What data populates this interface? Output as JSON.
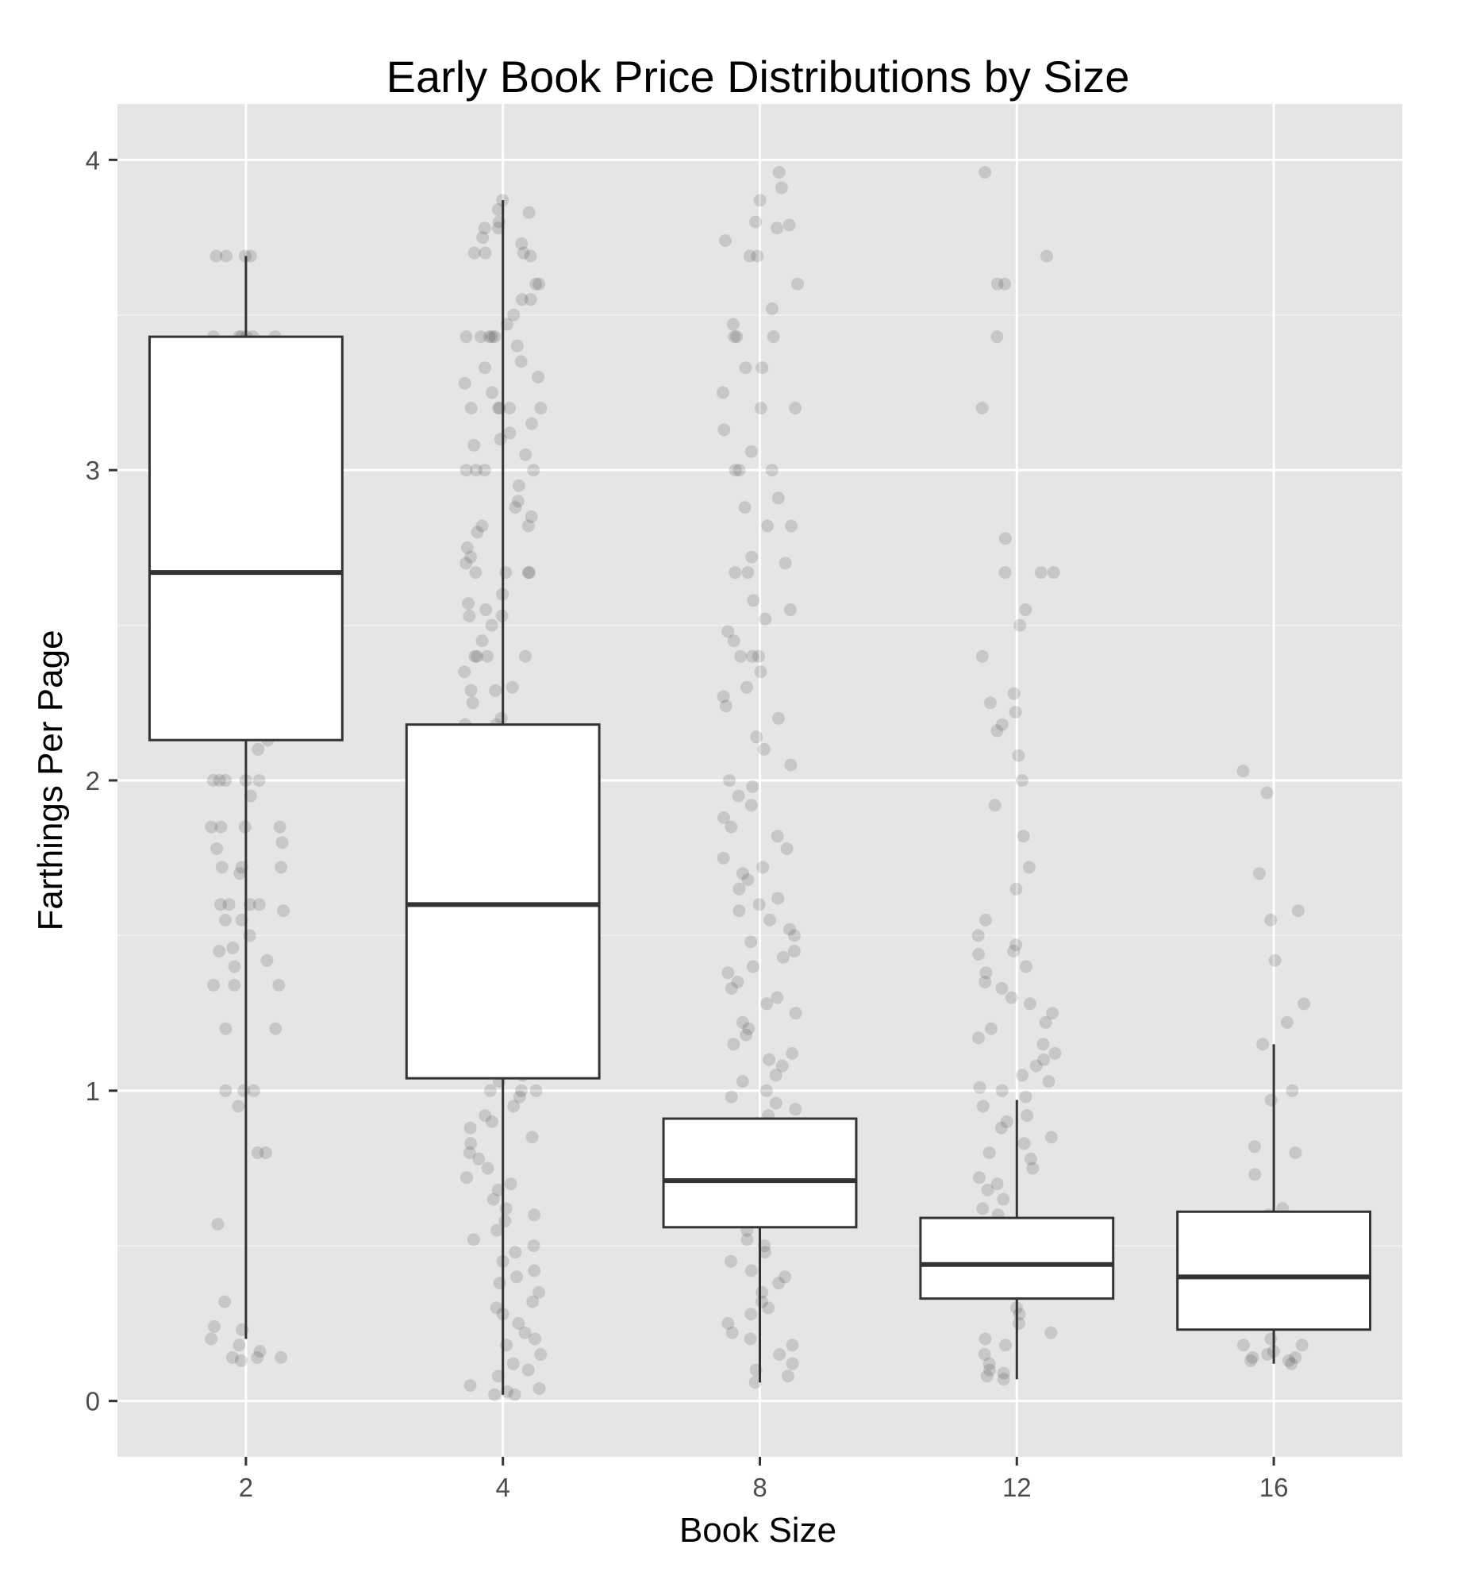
{
  "chart_data": {
    "type": "boxplot",
    "title": "Early Book Price Distributions by Size",
    "xlabel": "Book Size",
    "ylabel": "Farthings Per Page",
    "ylim": [
      -0.18,
      4.18
    ],
    "yticks": [
      0,
      1,
      2,
      3,
      4
    ],
    "grid": true,
    "categories": [
      "2",
      "4",
      "8",
      "12",
      "16"
    ],
    "boxes": [
      {
        "category": "2",
        "whisker_low": 0.2,
        "q1": 2.13,
        "median": 2.67,
        "q3": 3.43,
        "whisker_high": 3.69
      },
      {
        "category": "4",
        "whisker_low": 0.02,
        "q1": 1.04,
        "median": 1.6,
        "q3": 2.18,
        "whisker_high": 3.87
      },
      {
        "category": "8",
        "whisker_low": 0.06,
        "q1": 0.56,
        "median": 0.71,
        "q3": 0.91,
        "whisker_high": 0.91
      },
      {
        "category": "12",
        "whisker_low": 0.07,
        "q1": 0.33,
        "median": 0.44,
        "q3": 0.59,
        "whisker_high": 0.97
      },
      {
        "category": "16",
        "whisker_low": 0.12,
        "q1": 0.23,
        "median": 0.4,
        "q3": 0.61,
        "whisker_high": 1.15
      }
    ],
    "points_by_category": {
      "2": [
        3.69,
        3.69,
        3.69,
        3.69,
        3.43,
        3.43,
        3.43,
        3.43,
        3.43,
        3.43,
        2.2,
        2.13,
        2.1,
        2.0,
        2.0,
        2.0,
        2.0,
        2.0,
        1.95,
        1.85,
        1.85,
        1.85,
        1.85,
        1.8,
        1.78,
        1.72,
        1.72,
        1.72,
        1.7,
        1.6,
        1.6,
        1.6,
        1.6,
        1.58,
        1.55,
        1.55,
        1.5,
        1.46,
        1.45,
        1.42,
        1.4,
        1.34,
        1.34,
        1.34,
        1.2,
        1.2,
        1.0,
        1.0,
        1.0,
        0.95,
        0.8,
        0.8,
        0.57,
        0.32,
        0.23,
        0.24,
        0.2,
        0.18,
        0.16,
        0.14,
        0.14,
        0.14,
        0.13
      ],
      "4": [
        3.87,
        3.84,
        3.83,
        3.8,
        3.78,
        3.78,
        3.75,
        3.73,
        3.7,
        3.7,
        3.7,
        3.69,
        3.6,
        3.6,
        3.55,
        3.55,
        3.5,
        3.47,
        3.43,
        3.43,
        3.43,
        3.43,
        3.43,
        3.4,
        3.35,
        3.33,
        3.3,
        3.28,
        3.25,
        3.2,
        3.2,
        3.2,
        3.2,
        3.2,
        3.15,
        3.12,
        3.1,
        3.08,
        3.05,
        3.0,
        3.0,
        3.0,
        3.0,
        2.95,
        2.9,
        2.88,
        2.85,
        2.82,
        2.82,
        2.8,
        2.75,
        2.72,
        2.7,
        2.67,
        2.67,
        2.67,
        2.67,
        2.6,
        2.57,
        2.55,
        2.53,
        2.53,
        2.5,
        2.45,
        2.4,
        2.4,
        2.4,
        2.4,
        2.35,
        2.3,
        2.29,
        2.29,
        2.25,
        2.2,
        2.18,
        2.18,
        1.05,
        1.03,
        1.0,
        1.0,
        1.0,
        0.98,
        0.95,
        0.92,
        0.9,
        0.88,
        0.85,
        0.83,
        0.8,
        0.78,
        0.75,
        0.72,
        0.7,
        0.68,
        0.65,
        0.62,
        0.6,
        0.58,
        0.55,
        0.52,
        0.5,
        0.48,
        0.45,
        0.42,
        0.4,
        0.38,
        0.35,
        0.32,
        0.3,
        0.28,
        0.25,
        0.22,
        0.2,
        0.18,
        0.15,
        0.12,
        0.1,
        0.08,
        0.05,
        0.04,
        0.03,
        0.02,
        0.02
      ],
      "8": [
        3.96,
        3.91,
        3.87,
        3.8,
        3.79,
        3.78,
        3.74,
        3.69,
        3.69,
        3.6,
        3.52,
        3.47,
        3.43,
        3.43,
        3.43,
        3.33,
        3.33,
        3.25,
        3.2,
        3.2,
        3.13,
        3.06,
        3.0,
        3.0,
        3.0,
        2.91,
        2.88,
        2.82,
        2.82,
        2.72,
        2.7,
        2.67,
        2.67,
        2.58,
        2.55,
        2.52,
        2.48,
        2.45,
        2.4,
        2.4,
        2.4,
        2.35,
        2.3,
        2.27,
        2.24,
        2.2,
        2.14,
        2.1,
        2.05,
        2.0,
        1.98,
        1.95,
        1.92,
        1.88,
        1.85,
        1.82,
        1.78,
        1.75,
        1.72,
        1.7,
        1.68,
        1.65,
        1.62,
        1.6,
        1.58,
        1.55,
        1.52,
        1.5,
        1.48,
        1.45,
        1.43,
        1.4,
        1.38,
        1.35,
        1.33,
        1.3,
        1.28,
        1.25,
        1.22,
        1.2,
        1.18,
        1.15,
        1.12,
        1.1,
        1.08,
        1.05,
        1.03,
        1.0,
        0.98,
        0.96,
        0.94,
        0.92,
        0.55,
        0.52,
        0.5,
        0.48,
        0.45,
        0.42,
        0.4,
        0.38,
        0.35,
        0.32,
        0.3,
        0.28,
        0.25,
        0.22,
        0.2,
        0.18,
        0.15,
        0.12,
        0.1,
        0.08,
        0.06
      ],
      "12": [
        3.96,
        3.69,
        3.6,
        3.6,
        3.43,
        3.2,
        2.78,
        2.67,
        2.67,
        2.67,
        2.55,
        2.5,
        2.4,
        2.28,
        2.25,
        2.22,
        2.18,
        2.16,
        2.08,
        2.0,
        1.92,
        1.82,
        1.72,
        1.65,
        1.55,
        1.5,
        1.47,
        1.45,
        1.44,
        1.4,
        1.38,
        1.35,
        1.33,
        1.3,
        1.28,
        1.25,
        1.22,
        1.2,
        1.17,
        1.15,
        1.12,
        1.1,
        1.08,
        1.05,
        1.03,
        1.01,
        1.0,
        0.98,
        0.95,
        0.92,
        0.9,
        0.88,
        0.85,
        0.83,
        0.8,
        0.78,
        0.75,
        0.72,
        0.7,
        0.68,
        0.65,
        0.62,
        0.6,
        0.3,
        0.28,
        0.25,
        0.22,
        0.2,
        0.18,
        0.15,
        0.12,
        0.1,
        0.09,
        0.08,
        0.07
      ],
      "16": [
        2.03,
        1.96,
        1.7,
        1.58,
        1.55,
        1.42,
        1.28,
        1.22,
        1.15,
        1.0,
        0.97,
        0.82,
        0.8,
        0.73,
        0.62,
        0.6,
        0.2,
        0.18,
        0.18,
        0.16,
        0.15,
        0.14,
        0.14,
        0.13,
        0.13,
        0.12
      ]
    }
  }
}
